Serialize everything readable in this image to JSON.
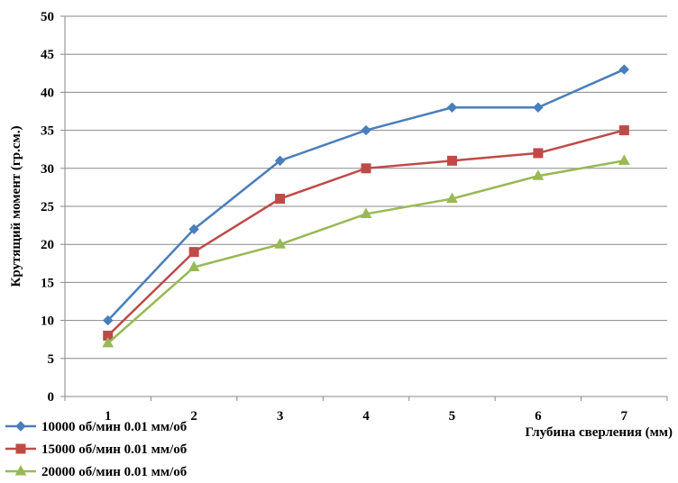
{
  "chart_data": {
    "type": "line",
    "title": "",
    "xlabel": "Глубина сверления (мм)",
    "ylabel": "Крутящий момент (гр.см.)",
    "categories": [
      "1",
      "2",
      "3",
      "4",
      "5",
      "6",
      "7"
    ],
    "ylim": [
      0,
      50
    ],
    "yticks": [
      "0",
      "5",
      "10",
      "15",
      "20",
      "25",
      "30",
      "35",
      "40",
      "45",
      "50"
    ],
    "grid": "horizontal",
    "legend_position": "bottom-left",
    "series": [
      {
        "name": "10000 об/мин 0.01 мм/об",
        "values": [
          10,
          22,
          31,
          35,
          38,
          38,
          43
        ],
        "color": "#4a7ebb",
        "marker": "diamond"
      },
      {
        "name": "15000 об/мин 0.01 мм/об",
        "values": [
          8,
          19,
          26,
          30,
          31,
          32,
          35
        ],
        "color": "#be4b48",
        "marker": "square"
      },
      {
        "name": "20000 об/мин 0.01 мм/об",
        "values": [
          7,
          17,
          20,
          24,
          26,
          29,
          31
        ],
        "color": "#98b954",
        "marker": "triangle"
      }
    ]
  }
}
